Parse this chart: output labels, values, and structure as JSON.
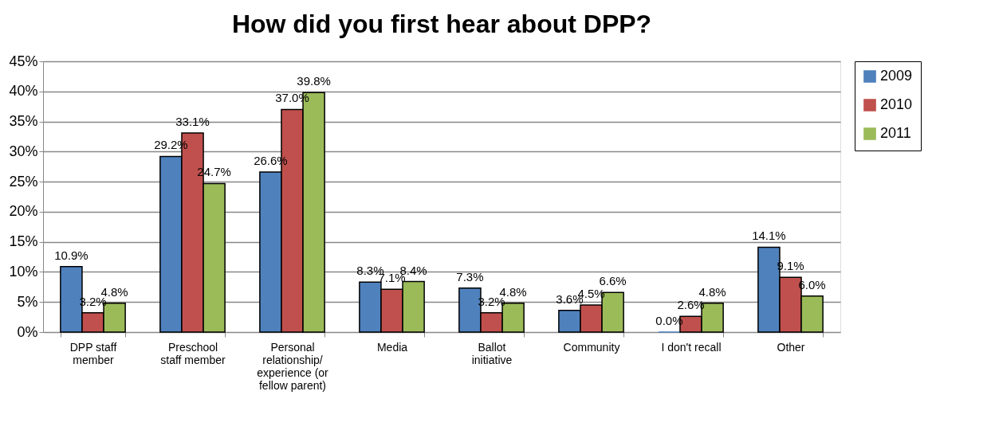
{
  "chart_data": {
    "type": "bar",
    "title": "How did you first hear about DPP?",
    "categories": [
      "DPP staff\nmember",
      "Preschool\nstaff member",
      "Personal\nrelationship/\nexperience (or\nfellow parent)",
      "Media",
      "Ballot\ninitiative",
      "Community",
      "I don't recall",
      "Other"
    ],
    "series": [
      {
        "name": "2009",
        "color": "#4f81bd",
        "values": [
          10.9,
          29.2,
          26.6,
          8.3,
          7.3,
          3.6,
          0.0,
          14.1
        ],
        "value_labels": [
          "10.9%",
          "29.2%",
          "26.6%",
          "8.3%",
          "7.3%",
          "3.6%",
          "0.0%",
          "14.1%"
        ]
      },
      {
        "name": "2010",
        "color": "#c0504d",
        "values": [
          3.2,
          33.1,
          37.0,
          7.1,
          3.2,
          4.5,
          2.6,
          9.1
        ],
        "value_labels": [
          "3.2%",
          "33.1%",
          "37.0%",
          "7.1%",
          "3.2%",
          "4.5%",
          "2.6%",
          "9.1%"
        ]
      },
      {
        "name": "2011",
        "color": "#9bbb59",
        "values": [
          4.8,
          24.7,
          39.8,
          8.4,
          4.8,
          6.6,
          4.8,
          6.0
        ],
        "value_labels": [
          "4.8%",
          "24.7%",
          "39.8%",
          "8.4%",
          "4.8%",
          "6.6%",
          "4.8%",
          "6.0%"
        ]
      }
    ],
    "ylim": [
      0,
      45
    ],
    "yticks": [
      {
        "value": 0,
        "label": "0%"
      },
      {
        "value": 5,
        "label": "5%"
      },
      {
        "value": 10,
        "label": "10%"
      },
      {
        "value": 15,
        "label": "15%"
      },
      {
        "value": 20,
        "label": "20%"
      },
      {
        "value": 25,
        "label": "25%"
      },
      {
        "value": 30,
        "label": "30%"
      },
      {
        "value": 35,
        "label": "35%"
      },
      {
        "value": 40,
        "label": "40%"
      },
      {
        "value": 45,
        "label": "45%"
      }
    ],
    "grid": "y",
    "legend": "right"
  }
}
